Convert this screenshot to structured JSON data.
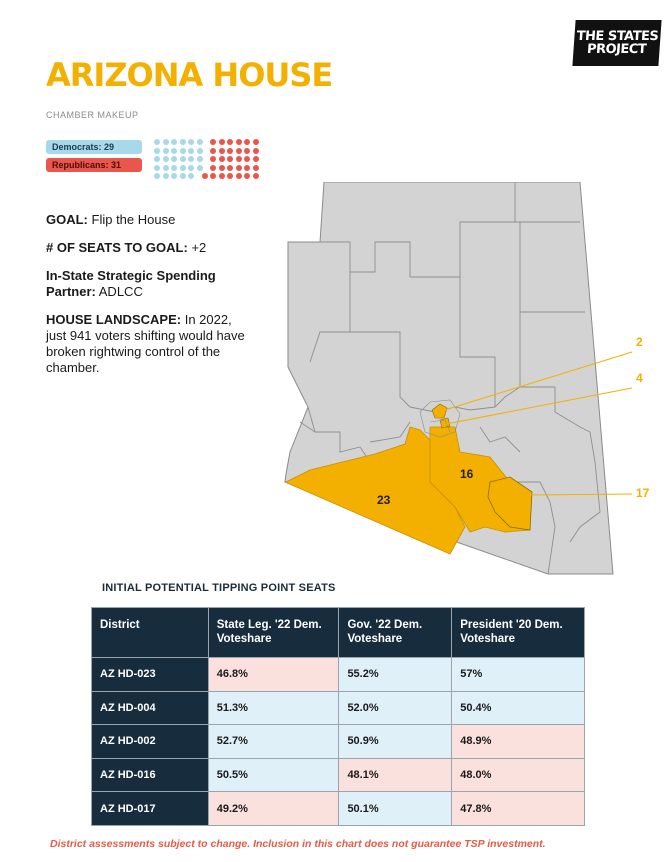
{
  "logo": {
    "line1": "THE STATES",
    "line2": "PROJECT"
  },
  "title": "ARIZONA HOUSE",
  "makeup_label": "CHAMBER MAKEUP",
  "democrats_label": "Democrats: 29",
  "republicans_label": "Republicans: 31",
  "democrats_seats": 29,
  "republicans_seats": 31,
  "colors": {
    "accent": "#f4b000",
    "democrat": "#a7d9ea",
    "republican": "#e9564b",
    "navy": "#172c3d"
  },
  "info": {
    "goal_label": "GOAL:",
    "goal_value": "Flip the House",
    "seats_label": "# OF SEATS TO GOAL:",
    "seats_value": "+2",
    "partner_label": "In-State Strategic Spending Partner:",
    "partner_value": "ADLCC",
    "landscape_label": "HOUSE LANDSCAPE:",
    "landscape_value": "In 2022, just 941 voters shifting would have broken rightwing control of the chamber."
  },
  "map_labels": {
    "d23": "23",
    "d16": "16",
    "c2": "2",
    "c4": "4",
    "c17": "17"
  },
  "table": {
    "title": "INITIAL POTENTIAL TIPPING POINT SEATS",
    "headers": [
      "District",
      "State Leg. '22 Dem. Voteshare",
      "Gov. '22 Dem. Voteshare",
      "President '20 Dem. Voteshare"
    ],
    "rows": [
      [
        "AZ HD-023",
        "46.8%",
        "55.2%",
        "57%"
      ],
      [
        "AZ HD-004",
        "51.3%",
        "52.0%",
        "50.4%"
      ],
      [
        "AZ HD-002",
        "52.7%",
        "50.9%",
        "48.9%"
      ],
      [
        "AZ HD-016",
        "50.5%",
        "48.1%",
        "48.0%"
      ],
      [
        "AZ HD-017",
        "49.2%",
        "50.1%",
        "47.8%"
      ]
    ]
  },
  "footer": "District assessments subject to change. Inclusion in this chart does not guarantee TSP investment."
}
